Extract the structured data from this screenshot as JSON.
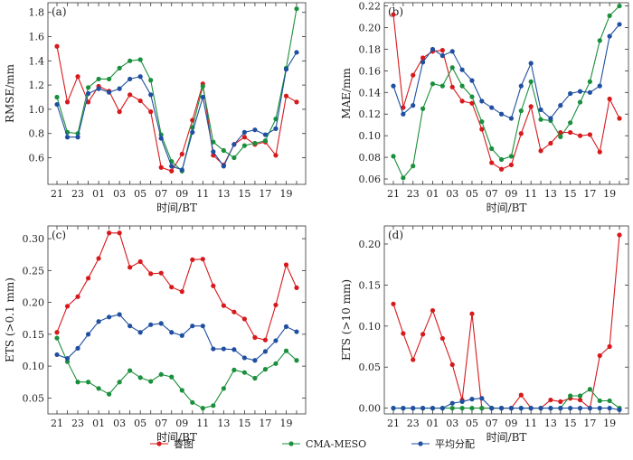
{
  "chart_data": [
    {
      "type": "line",
      "panel_label": "(a)",
      "xlabel": "时间/BT",
      "ylabel": "RMSE/mm",
      "x_ticks": [
        "21",
        "23",
        "01",
        "03",
        "05",
        "07",
        "09",
        "11",
        "13",
        "15",
        "17",
        "19"
      ],
      "ylim": [
        0.38,
        1.88
      ],
      "y_ticks": [
        0.6,
        0.8,
        1.0,
        1.2,
        1.4,
        1.6,
        1.8
      ],
      "y_tick_labels": [
        "0.6",
        "0.8",
        "1.0",
        "1.2",
        "1.4",
        "1.6",
        "1.8"
      ],
      "series": [
        {
          "name": "睿图",
          "color": "#d7191c",
          "values": [
            1.52,
            1.06,
            1.27,
            1.06,
            1.19,
            1.15,
            0.98,
            1.12,
            1.07,
            0.98,
            0.52,
            0.49,
            0.63,
            0.91,
            1.21,
            0.62,
            0.54,
            0.71,
            0.77,
            0.71,
            0.73,
            0.62,
            1.11,
            1.06
          ]
        },
        {
          "name": "CMA-MESO",
          "color": "#1a8f3c",
          "values": [
            1.1,
            0.81,
            0.8,
            1.18,
            1.25,
            1.25,
            1.34,
            1.4,
            1.41,
            1.24,
            0.79,
            0.57,
            0.49,
            0.85,
            1.19,
            0.73,
            0.66,
            0.6,
            0.7,
            0.72,
            0.74,
            0.92,
            1.34,
            1.83
          ]
        },
        {
          "name": "平均分配",
          "color": "#1f4fa0",
          "values": [
            1.04,
            0.77,
            0.77,
            1.13,
            1.17,
            1.14,
            1.17,
            1.25,
            1.27,
            1.12,
            0.76,
            0.53,
            0.5,
            0.81,
            1.1,
            0.65,
            0.53,
            0.71,
            0.81,
            0.83,
            0.79,
            0.84,
            1.33,
            1.47
          ]
        }
      ]
    },
    {
      "type": "line",
      "panel_label": "(b)",
      "xlabel": "时间/BT",
      "ylabel": "MAE/mm",
      "x_ticks": [
        "21",
        "23",
        "01",
        "03",
        "05",
        "07",
        "09",
        "11",
        "13",
        "15",
        "17",
        "19"
      ],
      "ylim": [
        0.055,
        0.223
      ],
      "y_ticks": [
        0.06,
        0.08,
        0.1,
        0.12,
        0.14,
        0.16,
        0.18,
        0.2,
        0.22
      ],
      "y_tick_labels": [
        "0.06",
        "0.08",
        "0.10",
        "0.12",
        "0.14",
        "0.16",
        "0.18",
        "0.20",
        "0.22"
      ],
      "series": [
        {
          "name": "睿图",
          "color": "#d7191c",
          "values": [
            0.212,
            0.126,
            0.156,
            0.172,
            0.178,
            0.179,
            0.145,
            0.132,
            0.13,
            0.106,
            0.075,
            0.069,
            0.073,
            0.102,
            0.127,
            0.086,
            0.093,
            0.103,
            0.103,
            0.1,
            0.101,
            0.085,
            0.134,
            0.116
          ]
        },
        {
          "name": "CMA-MESO",
          "color": "#1a8f3c",
          "values": [
            0.081,
            0.061,
            0.072,
            0.125,
            0.148,
            0.146,
            0.163,
            0.146,
            0.136,
            0.113,
            0.088,
            0.078,
            0.081,
            0.123,
            0.15,
            0.115,
            0.114,
            0.099,
            0.112,
            0.131,
            0.15,
            0.188,
            0.211,
            0.22
          ]
        },
        {
          "name": "平均分配",
          "color": "#1f4fa0",
          "values": [
            0.146,
            0.12,
            0.128,
            0.168,
            0.18,
            0.174,
            0.178,
            0.161,
            0.151,
            0.132,
            0.126,
            0.12,
            0.116,
            0.146,
            0.167,
            0.124,
            0.116,
            0.128,
            0.139,
            0.141,
            0.14,
            0.146,
            0.192,
            0.203
          ]
        }
      ]
    },
    {
      "type": "line",
      "panel_label": "(c)",
      "xlabel": "时间/BT",
      "ylabel": "ETS (>0.1 mm)",
      "x_ticks": [
        "21",
        "23",
        "01",
        "03",
        "05",
        "07",
        "09",
        "11",
        "13",
        "15",
        "17",
        "19"
      ],
      "ylim": [
        0.025,
        0.32
      ],
      "y_ticks": [
        0.05,
        0.1,
        0.15,
        0.2,
        0.25,
        0.3
      ],
      "y_tick_labels": [
        "0.05",
        "0.10",
        "0.15",
        "0.20",
        "0.25",
        "0.30"
      ],
      "series": [
        {
          "name": "睿图",
          "color": "#d7191c",
          "values": [
            0.153,
            0.194,
            0.209,
            0.238,
            0.269,
            0.309,
            0.309,
            0.255,
            0.264,
            0.245,
            0.246,
            0.224,
            0.217,
            0.267,
            0.268,
            0.226,
            0.195,
            0.185,
            0.174,
            0.145,
            0.141,
            0.196,
            0.259,
            0.223
          ]
        },
        {
          "name": "CMA-MESO",
          "color": "#1a8f3c",
          "values": [
            0.144,
            0.107,
            0.075,
            0.075,
            0.065,
            0.056,
            0.075,
            0.093,
            0.082,
            0.076,
            0.087,
            0.083,
            0.062,
            0.043,
            0.034,
            0.038,
            0.065,
            0.094,
            0.09,
            0.081,
            0.095,
            0.104,
            0.124,
            0.109
          ]
        },
        {
          "name": "平均分配",
          "color": "#1f4fa0",
          "values": [
            0.118,
            0.112,
            0.128,
            0.15,
            0.17,
            0.177,
            0.181,
            0.163,
            0.153,
            0.165,
            0.167,
            0.153,
            0.148,
            0.163,
            0.163,
            0.127,
            0.127,
            0.126,
            0.113,
            0.109,
            0.123,
            0.14,
            0.162,
            0.154
          ]
        }
      ]
    },
    {
      "type": "line",
      "panel_label": "(d)",
      "xlabel": "时间/BT",
      "ylabel": "ETS (>10 mm)",
      "x_ticks": [
        "21",
        "23",
        "01",
        "03",
        "05",
        "07",
        "09",
        "11",
        "13",
        "15",
        "17",
        "19"
      ],
      "ylim": [
        -0.007,
        0.222
      ],
      "y_ticks": [
        0.0,
        0.05,
        0.1,
        0.15,
        0.2
      ],
      "y_tick_labels": [
        "0.00",
        "0.05",
        "0.10",
        "0.15",
        "0.20"
      ],
      "series": [
        {
          "name": "睿图",
          "color": "#d7191c",
          "values": [
            0.127,
            0.091,
            0.059,
            0.09,
            0.119,
            0.085,
            0.053,
            0.01,
            0.115,
            0.0,
            0.0,
            0.0,
            0.0,
            0.016,
            0.0,
            0.0,
            0.01,
            0.008,
            0.012,
            0.01,
            0.0,
            0.064,
            0.075,
            0.211
          ]
        },
        {
          "name": "CMA-MESO",
          "color": "#1a8f3c",
          "values": [
            0.0,
            0.0,
            0.0,
            0.0,
            0.0,
            0.0,
            0.0,
            0.0,
            0.0,
            0.0,
            0.0,
            0.0,
            0.0,
            0.0,
            0.0,
            0.0,
            0.0,
            0.0,
            0.015,
            0.015,
            0.023,
            0.009,
            0.009,
            0.0
          ]
        },
        {
          "name": "平均分配",
          "color": "#1f4fa0",
          "values": [
            0.0,
            0.0,
            0.0,
            0.0,
            0.0,
            0.0,
            0.006,
            0.008,
            0.011,
            0.012,
            0.0,
            0.0,
            0.0,
            0.0,
            0.0,
            0.0,
            0.0,
            0.0,
            0.0,
            0.0,
            0.0,
            0.0,
            0.0,
            -0.002
          ]
        }
      ]
    }
  ],
  "legend": {
    "position": "bottom-center",
    "items": [
      {
        "label": "睿图",
        "color": "#d7191c"
      },
      {
        "label": "CMA-MESO",
        "color": "#1a8f3c"
      },
      {
        "label": "平均分配",
        "color": "#1f4fa0"
      }
    ]
  }
}
